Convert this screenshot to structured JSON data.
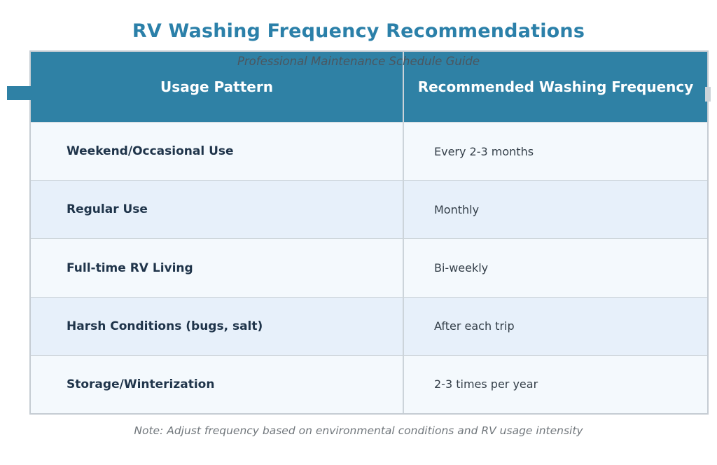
{
  "title": "RV Washing Frequency Recommendations",
  "subtitle": "Professional Maintenance Schedule Guide",
  "note": "Note: Adjust frequency based on environmental conditions and RV usage intensity",
  "table": {
    "headers": [
      "Usage Pattern",
      "Recommended Washing Frequency"
    ],
    "rows": [
      {
        "usage": "Weekend/Occasional Use",
        "frequency": "Every 2-3 months"
      },
      {
        "usage": "Regular Use",
        "frequency": "Monthly"
      },
      {
        "usage": "Full-time RV Living",
        "frequency": "Bi-weekly"
      },
      {
        "usage": "Harsh Conditions (bugs, salt)",
        "frequency": "After each trip"
      },
      {
        "usage": "Storage/Winterization",
        "frequency": "2-3 times per year"
      }
    ]
  },
  "colors": {
    "accent_teal": "#2f81a5",
    "title_teal": "#2b80a9",
    "row_light": "#f4f9fd",
    "row_alt": "#e7f0fa",
    "border": "#c5ccd3",
    "header_text": "#ffffff",
    "label_text": "#1f344a",
    "value_text": "#333e48",
    "note_text": "#71777c"
  },
  "chart_data": {
    "type": "table",
    "title": "RV Washing Frequency Recommendations",
    "subtitle": "Professional Maintenance Schedule Guide",
    "columns": [
      "Usage Pattern",
      "Recommended Washing Frequency"
    ],
    "rows": [
      [
        "Weekend/Occasional Use",
        "Every 2-3 months"
      ],
      [
        "Regular Use",
        "Monthly"
      ],
      [
        "Full-time RV Living",
        "Bi-weekly"
      ],
      [
        "Harsh Conditions (bugs, salt)",
        "After each trip"
      ],
      [
        "Storage/Winterization",
        "2-3 times per year"
      ]
    ],
    "note": "Note: Adjust frequency based on environmental conditions and RV usage intensity",
    "layout": {
      "header_style": "teal band",
      "striped_rows": true,
      "legend": "none",
      "grid": "row and column separators"
    }
  }
}
